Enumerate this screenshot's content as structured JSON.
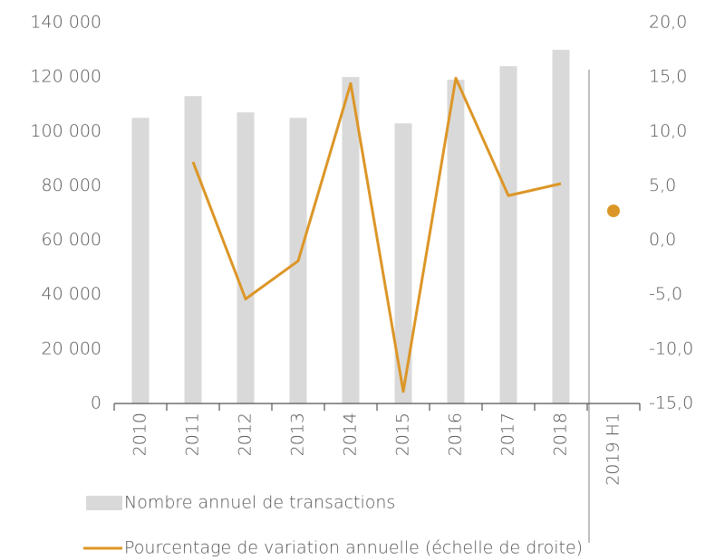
{
  "chart_data": {
    "type": "bar_line",
    "categories": [
      "2010",
      "2011",
      "2012",
      "2013",
      "2014",
      "2015",
      "2016",
      "2017",
      "2018",
      "2019 H1"
    ],
    "series": [
      {
        "name": "Nombre annuel de transactions",
        "type": "bar",
        "color": "#d9d9d9",
        "values": [
          105000,
          113000,
          107000,
          105000,
          120000,
          103000,
          119000,
          124000,
          130000,
          null
        ]
      },
      {
        "name": "Pourcentage de variation annuelle (échelle de droite)",
        "type": "line",
        "axis": "y2",
        "color": "#dc9627",
        "values": [
          null,
          7.2,
          -5.4,
          -1.9,
          14.4,
          -13.9,
          14.9,
          4.1,
          5.2,
          null
        ]
      },
      {
        "type": "point",
        "axis": "y2",
        "color": "#dc9627",
        "values": [
          null,
          null,
          null,
          null,
          null,
          null,
          null,
          null,
          null,
          2.7
        ]
      }
    ],
    "ylim": [
      0,
      140000
    ],
    "yticks": [
      {
        "value": 0,
        "label": "0"
      },
      {
        "value": 20000,
        "label": "20 000"
      },
      {
        "value": 40000,
        "label": "40 000"
      },
      {
        "value": 60000,
        "label": "60 000"
      },
      {
        "value": 80000,
        "label": "80 000"
      },
      {
        "value": 100000,
        "label": "100 000"
      },
      {
        "value": 120000,
        "label": "120 000"
      },
      {
        "value": 140000,
        "label": "140 000"
      }
    ],
    "y2lim": [
      -15,
      20
    ],
    "y2ticks": [
      {
        "value": -15,
        "label": "-15,0"
      },
      {
        "value": -10,
        "label": "-10,0"
      },
      {
        "value": -5,
        "label": "-5,0"
      },
      {
        "value": 0,
        "label": "0,0"
      },
      {
        "value": 5,
        "label": "5,0"
      },
      {
        "value": 10,
        "label": "10,0"
      },
      {
        "value": 15,
        "label": "15,0"
      },
      {
        "value": 20,
        "label": "20,0"
      }
    ],
    "grid": false,
    "legend": "bottom"
  }
}
